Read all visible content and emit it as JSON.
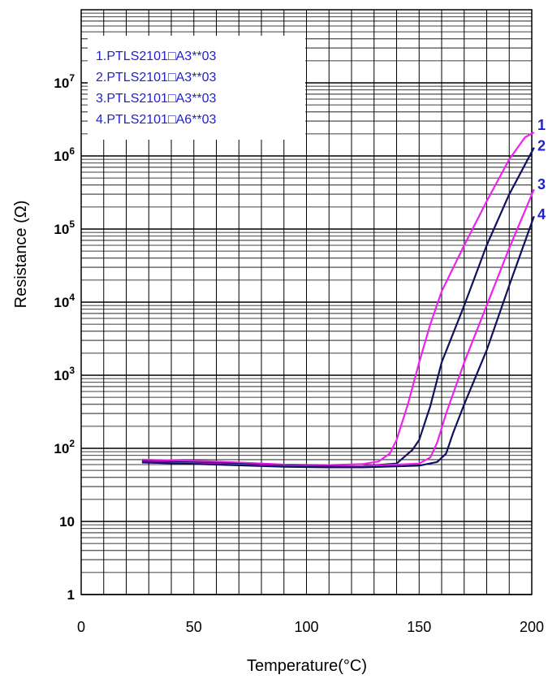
{
  "chart_data": {
    "type": "line",
    "xlabel": "Temperature(°C)",
    "ylabel": "Resistance (Ω)",
    "xlim": [
      0,
      200
    ],
    "ylim_log10": [
      0,
      8
    ],
    "y_scale": "log",
    "grid": true,
    "x_ticks": [
      "0",
      "50",
      "100",
      "150",
      "200"
    ],
    "y_ticks": [
      {
        "base": "1",
        "exp": ""
      },
      {
        "base": "10",
        "exp": ""
      },
      {
        "base": "10",
        "exp": "2"
      },
      {
        "base": "10",
        "exp": "3"
      },
      {
        "base": "10",
        "exp": "4"
      },
      {
        "base": "10",
        "exp": "5"
      },
      {
        "base": "10",
        "exp": "6"
      },
      {
        "base": "10",
        "exp": "7"
      }
    ],
    "legend": {
      "placement": "top-left",
      "color": "#2222cc",
      "entries": [
        "1.PTLS2101□A3**03",
        "2.PTLS2101□A3**03",
        "3.PTLS2101□A3**03",
        "4.PTLS2101□A6**03"
      ]
    },
    "series": [
      {
        "label": "1",
        "color": "#ee22ee",
        "points": [
          [
            27,
            70
          ],
          [
            60,
            66
          ],
          [
            90,
            60
          ],
          [
            110,
            59
          ],
          [
            125,
            61
          ],
          [
            132,
            66
          ],
          [
            137,
            85
          ],
          [
            140,
            130
          ],
          [
            145,
            400
          ],
          [
            150,
            1500
          ],
          [
            155,
            5000
          ],
          [
            160,
            14000
          ],
          [
            170,
            60000
          ],
          [
            180,
            240000
          ],
          [
            190,
            900000
          ],
          [
            197,
            1800000
          ],
          [
            201,
            2100000
          ]
        ]
      },
      {
        "label": "2",
        "color": "#101060",
        "points": [
          [
            27,
            67
          ],
          [
            60,
            63
          ],
          [
            90,
            58
          ],
          [
            110,
            57
          ],
          [
            125,
            57
          ],
          [
            140,
            62
          ],
          [
            147,
            95
          ],
          [
            150,
            130
          ],
          [
            155,
            380
          ],
          [
            160,
            1500
          ],
          [
            170,
            9000
          ],
          [
            180,
            60000
          ],
          [
            190,
            300000
          ],
          [
            201,
            1300000
          ]
        ]
      },
      {
        "label": "3",
        "color": "#ee22ee",
        "points": [
          [
            27,
            65
          ],
          [
            60,
            61
          ],
          [
            90,
            57
          ],
          [
            110,
            56
          ],
          [
            125,
            57
          ],
          [
            150,
            62
          ],
          [
            155,
            75
          ],
          [
            158,
            120
          ],
          [
            162,
            300
          ],
          [
            170,
            1500
          ],
          [
            180,
            9000
          ],
          [
            190,
            55000
          ],
          [
            201,
            350000
          ]
        ]
      },
      {
        "label": "4",
        "color": "#101060",
        "points": [
          [
            27,
            64
          ],
          [
            60,
            60
          ],
          [
            90,
            56
          ],
          [
            110,
            55
          ],
          [
            125,
            55
          ],
          [
            150,
            58
          ],
          [
            158,
            65
          ],
          [
            162,
            85
          ],
          [
            165,
            160
          ],
          [
            170,
            400
          ],
          [
            180,
            2200
          ],
          [
            190,
            17000
          ],
          [
            201,
            150000
          ]
        ]
      }
    ]
  }
}
